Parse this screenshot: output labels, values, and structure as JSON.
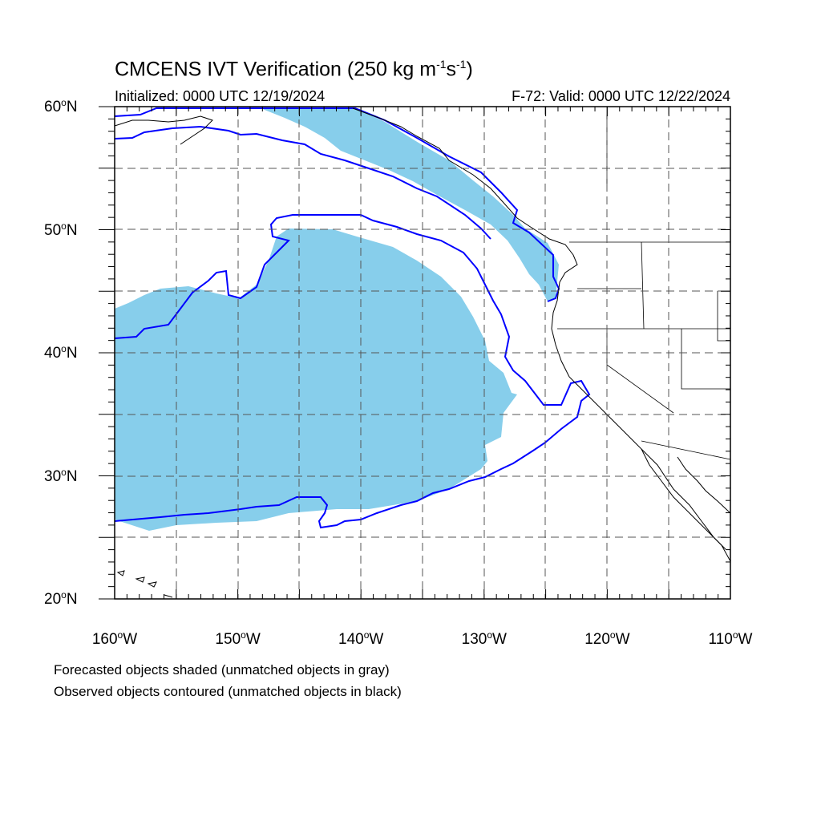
{
  "header": {
    "title_prefix": "CMCENS IVT Verification (250 kg m",
    "exp1": "-1",
    "title_mid": "s",
    "exp2": "-1",
    "title_suffix": ")",
    "initialized": "Initialized: 0000 UTC 12/19/2024",
    "valid": "F-72: Valid: 0000 UTC 12/22/2024"
  },
  "map": {
    "lon_range": [
      -160,
      -110
    ],
    "lat_range": [
      20,
      60
    ],
    "lat_labels": [
      {
        "lat": 60,
        "num": "60",
        "hemi": "N"
      },
      {
        "lat": 50,
        "num": "50",
        "hemi": "N"
      },
      {
        "lat": 40,
        "num": "40",
        "hemi": "N"
      },
      {
        "lat": 30,
        "num": "30",
        "hemi": "N"
      },
      {
        "lat": 20,
        "num": "20",
        "hemi": "N"
      }
    ],
    "lon_labels": [
      {
        "lon": -160,
        "num": "160",
        "hemi": "W"
      },
      {
        "lon": -150,
        "num": "150",
        "hemi": "W"
      },
      {
        "lon": -140,
        "num": "140",
        "hemi": "W"
      },
      {
        "lon": -130,
        "num": "130",
        "hemi": "W"
      },
      {
        "lon": -120,
        "num": "120",
        "hemi": "W"
      },
      {
        "lon": -110,
        "num": "110",
        "hemi": "W"
      }
    ],
    "forecast_color": "#87ceeb",
    "observed_color": "#0000ff",
    "coast_color": "#000000"
  },
  "legend": {
    "line1": "Forecasted objects shaded (unmatched objects in gray)",
    "line2": "Observed objects contoured (unmatched objects in black)"
  }
}
